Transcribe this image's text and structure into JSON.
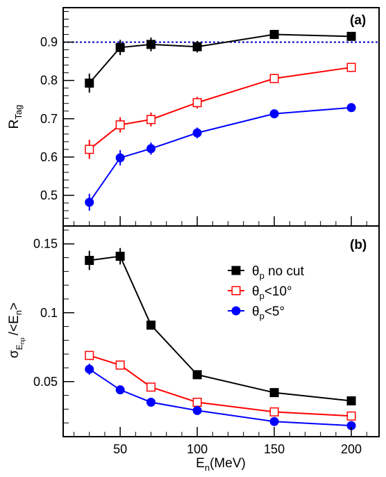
{
  "chart_data": [
    {
      "panel": "(a)",
      "type": "line",
      "ylabel": "R",
      "ylabel_sub": "Tag",
      "xlim": [
        13,
        218
      ],
      "ylim": [
        0.42,
        0.99
      ],
      "yticks": [
        0.5,
        0.6,
        0.7,
        0.8,
        0.9
      ],
      "ytick_labels": [
        "0.5",
        "0.6",
        "0.7",
        "0.8",
        "0.9"
      ],
      "reference_line": {
        "y": 0.9,
        "style": "dotted",
        "color": "#0000cc"
      },
      "x": [
        30,
        50,
        70,
        100,
        150,
        200
      ],
      "series": [
        {
          "key": "nocut",
          "color": "#000000",
          "marker": "filled-square",
          "values": [
            0.793,
            0.886,
            0.894,
            0.888,
            0.92,
            0.915
          ],
          "errors": [
            0.025,
            0.02,
            0.018,
            0.015,
            0.012,
            0.01
          ]
        },
        {
          "key": "lt10",
          "color": "#ff0000",
          "marker": "open-square",
          "values": [
            0.62,
            0.684,
            0.698,
            0.742,
            0.805,
            0.834
          ],
          "errors": [
            0.025,
            0.02,
            0.018,
            0.015,
            0.012,
            0.01
          ]
        },
        {
          "key": "lt5",
          "color": "#0000ff",
          "marker": "filled-circle",
          "values": [
            0.482,
            0.598,
            0.622,
            0.663,
            0.713,
            0.729
          ],
          "errors": [
            0.022,
            0.02,
            0.016,
            0.014,
            0.01,
            0.008
          ]
        }
      ]
    },
    {
      "panel": "(b)",
      "type": "line",
      "xlabel": "E",
      "xlabel_sub": "n",
      "xlabel_unit": "(MeV)",
      "ylabel": "σ",
      "ylabel_sub": "E",
      "ylabel_subsub": "np",
      "ylabel_rest": "/<E",
      "ylabel_sub2": "n",
      "ylabel_end": ">",
      "xlim": [
        13,
        218
      ],
      "ylim": [
        0.01,
        0.163
      ],
      "xticks": [
        50,
        100,
        150,
        200
      ],
      "xtick_labels": [
        "50",
        "100",
        "150",
        "200"
      ],
      "yticks": [
        0.05,
        0.1,
        0.15
      ],
      "ytick_labels": [
        "0.05",
        "0.1",
        "0.15"
      ],
      "x": [
        30,
        50,
        70,
        100,
        150,
        200
      ],
      "series": [
        {
          "key": "nocut",
          "color": "#000000",
          "marker": "filled-square",
          "values": [
            0.138,
            0.141,
            0.091,
            0.055,
            0.042,
            0.036
          ],
          "errors": [
            0.007,
            0.006,
            0.003,
            0.002,
            0.002,
            0.002
          ]
        },
        {
          "key": "lt10",
          "color": "#ff0000",
          "marker": "open-square",
          "values": [
            0.069,
            0.062,
            0.046,
            0.035,
            0.028,
            0.025
          ],
          "errors": [
            0.003,
            0.002,
            0.002,
            0.001,
            0.001,
            0.001
          ]
        },
        {
          "key": "lt5",
          "color": "#0000ff",
          "marker": "filled-circle",
          "values": [
            0.059,
            0.044,
            0.035,
            0.029,
            0.021,
            0.018
          ],
          "errors": [
            0.004,
            0.002,
            0.001,
            0.001,
            0.001,
            0.001
          ]
        }
      ],
      "legend": {
        "placement": "top-right",
        "entries": [
          {
            "key": "nocut",
            "symbol": "θ",
            "sub": "p",
            "text": " no cut"
          },
          {
            "key": "lt10",
            "symbol": "θ",
            "sub": "p",
            "text": "<10°"
          },
          {
            "key": "lt5",
            "symbol": "θ",
            "sub": "p",
            "text": "<5°"
          }
        ]
      }
    }
  ]
}
